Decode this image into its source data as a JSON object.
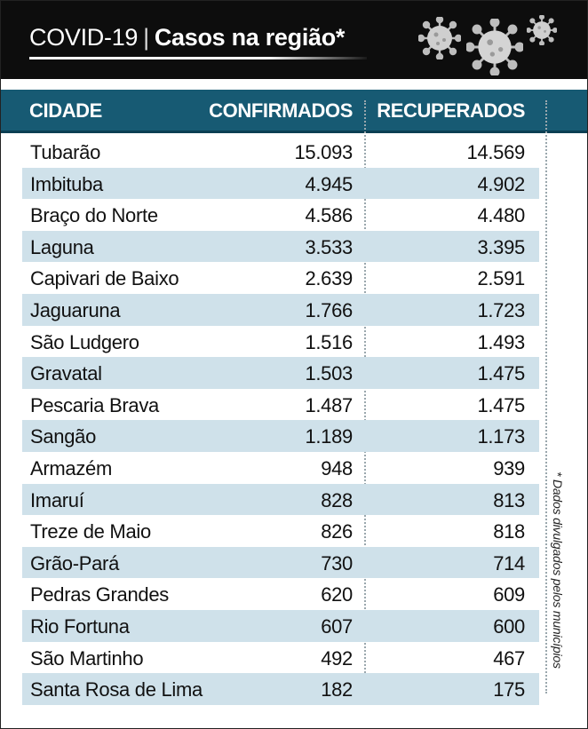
{
  "header": {
    "title_prefix": "COVID-19",
    "title_separator": "|",
    "title_main": "Casos na região*",
    "icons": [
      "virus-icon",
      "virus-icon",
      "virus-icon"
    ]
  },
  "colors": {
    "header_bg": "#0d0d0d",
    "column_header_bg": "#175a73",
    "row_alt_bg": "#cfe1ea"
  },
  "footnote": "* Dados divulgados pelos municípios",
  "chart_data": {
    "type": "table",
    "columns": [
      "CIDADE",
      "CONFIRMADOS",
      "RECUPERADOS"
    ],
    "rows": [
      {
        "city": "Tubarão",
        "confirmed": "15.093",
        "recovered": "14.569"
      },
      {
        "city": "Imbituba",
        "confirmed": "4.945",
        "recovered": "4.902"
      },
      {
        "city": "Braço do Norte",
        "confirmed": "4.586",
        "recovered": "4.480"
      },
      {
        "city": "Laguna",
        "confirmed": "3.533",
        "recovered": "3.395"
      },
      {
        "city": "Capivari de Baixo",
        "confirmed": "2.639",
        "recovered": "2.591"
      },
      {
        "city": "Jaguaruna",
        "confirmed": "1.766",
        "recovered": "1.723"
      },
      {
        "city": "São Ludgero",
        "confirmed": "1.516",
        "recovered": "1.493"
      },
      {
        "city": "Gravatal",
        "confirmed": "1.503",
        "recovered": "1.475"
      },
      {
        "city": "Pescaria Brava",
        "confirmed": "1.487",
        "recovered": "1.475"
      },
      {
        "city": "Sangão",
        "confirmed": "1.189",
        "recovered": "1.173"
      },
      {
        "city": "Armazém",
        "confirmed": "948",
        "recovered": "939"
      },
      {
        "city": "Imaruí",
        "confirmed": "828",
        "recovered": "813"
      },
      {
        "city": "Treze de Maio",
        "confirmed": "826",
        "recovered": "818"
      },
      {
        "city": "Grão-Pará",
        "confirmed": "730",
        "recovered": "714"
      },
      {
        "city": "Pedras Grandes",
        "confirmed": "620",
        "recovered": "609"
      },
      {
        "city": "Rio Fortuna",
        "confirmed": "607",
        "recovered": "600"
      },
      {
        "city": "São Martinho",
        "confirmed": "492",
        "recovered": "467"
      },
      {
        "city": "Santa Rosa de Lima",
        "confirmed": "182",
        "recovered": "175"
      }
    ]
  }
}
